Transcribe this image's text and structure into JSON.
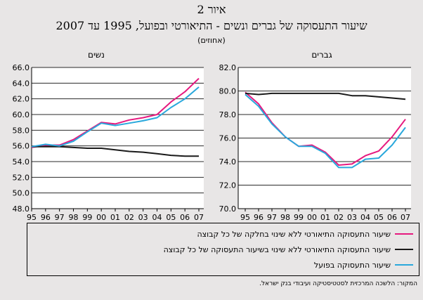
{
  "figure": {
    "number": "איור 2",
    "title": "שיעור התעסוקה של גברים ונשים - התיאורטי ובפועל, 1995 עד 2007",
    "subtitle": "(אחוזים)",
    "source": "המקור: הלשכה המרכזית לסטטיסטיקה ועיבודי בנק ישראל."
  },
  "legend": [
    {
      "label": "שיעור התעסוקה התיאורטי ללא שינוי בחלקה של כל קבוצה",
      "color": "#e6197f"
    },
    {
      "label": "שיעור התעסוקה התיאורטי ללא שינוי בשיעור התעסוקה של כל קבוצה",
      "color": "#1a1a1a"
    },
    {
      "label": "שיעור התעסוקה בפועל",
      "color": "#2aa8dc"
    }
  ],
  "chart_data": [
    {
      "type": "line",
      "title": "נשים",
      "x": [
        "95",
        "96",
        "97",
        "98",
        "99",
        "00",
        "01",
        "02",
        "03",
        "04",
        "05",
        "06",
        "07"
      ],
      "ylim": [
        48,
        66
      ],
      "yticks": [
        "48.0",
        "50.0",
        "52.0",
        "54.0",
        "56.0",
        "58.0",
        "60.0",
        "62.0",
        "64.0",
        "66.0"
      ],
      "grid": true,
      "series": [
        {
          "name": "שיעור התעסוקה התיאורטי ללא שינוי בחלקה של כל קבוצה",
          "color": "#e6197f",
          "values": [
            55.8,
            56.1,
            56.1,
            56.8,
            57.9,
            59.0,
            58.8,
            59.3,
            59.6,
            60.0,
            61.6,
            62.9,
            64.6
          ]
        },
        {
          "name": "שיעור התעסוקה התיאורטי ללא שינוי בשיעור התעסוקה של כל קבוצה",
          "color": "#1a1a1a",
          "values": [
            55.9,
            55.9,
            55.9,
            55.8,
            55.7,
            55.7,
            55.5,
            55.3,
            55.2,
            55.0,
            54.8,
            54.7,
            54.7
          ]
        },
        {
          "name": "שיעור התעסוקה בפועל",
          "color": "#2aa8dc",
          "values": [
            55.9,
            56.2,
            56.0,
            56.6,
            57.8,
            58.9,
            58.6,
            58.9,
            59.2,
            59.6,
            60.9,
            62.0,
            63.5
          ]
        }
      ]
    },
    {
      "type": "line",
      "title": "גברים",
      "x": [
        "95",
        "96",
        "97",
        "98",
        "99",
        "00",
        "01",
        "02",
        "03",
        "04",
        "05",
        "06",
        "07"
      ],
      "ylim": [
        70,
        82
      ],
      "yticks": [
        "70.0",
        "72.0",
        "74.0",
        "76.0",
        "78.0",
        "80.0",
        "82.0"
      ],
      "grid": true,
      "series": [
        {
          "name": "שיעור התעסוקה התיאורטי ללא שינוי בחלקה של כל קבוצה",
          "color": "#e6197f",
          "values": [
            79.9,
            78.9,
            77.3,
            76.1,
            75.3,
            75.4,
            74.8,
            73.7,
            73.8,
            74.5,
            74.9,
            76.1,
            77.6
          ]
        },
        {
          "name": "שיעור התעסוקה התיאורטי ללא שינוי בשיעור התעסוקה של כל קבוצה",
          "color": "#1a1a1a",
          "values": [
            79.8,
            79.7,
            79.8,
            79.8,
            79.8,
            79.8,
            79.8,
            79.8,
            79.6,
            79.6,
            79.5,
            79.4,
            79.3
          ]
        },
        {
          "name": "שיעור התעסוקה בפועל",
          "color": "#2aa8dc",
          "values": [
            79.7,
            78.7,
            77.2,
            76.1,
            75.3,
            75.3,
            74.7,
            73.5,
            73.5,
            74.2,
            74.3,
            75.4,
            76.9
          ]
        }
      ]
    }
  ]
}
